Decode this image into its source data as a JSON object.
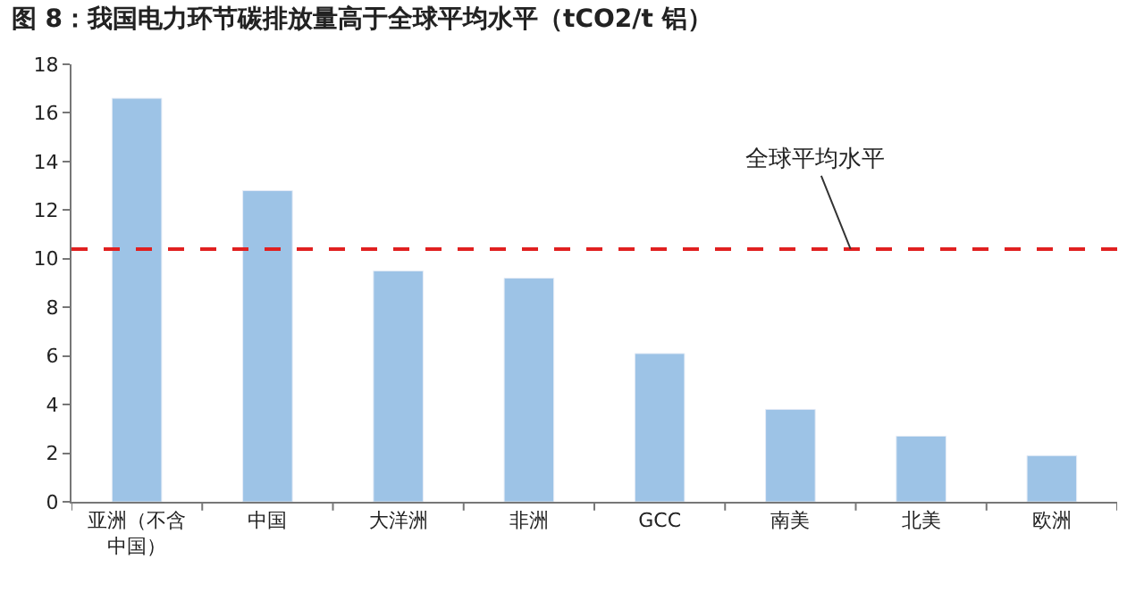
{
  "chart_data": {
    "type": "bar",
    "title": "图 8：我国电力环节碳排放量高于全球平均水平（tCO2/t 铝）",
    "categories": [
      "亚洲（不含中国）",
      "中国",
      "大洋洲",
      "非洲",
      "GCC",
      "南美",
      "北美",
      "欧洲"
    ],
    "values": [
      16.6,
      12.8,
      9.5,
      9.2,
      6.1,
      3.8,
      2.7,
      1.9
    ],
    "color": "#9dc3e6",
    "ylim": [
      0,
      18
    ],
    "yticks": [
      0,
      2,
      4,
      6,
      8,
      10,
      12,
      14,
      16,
      18
    ],
    "ref_lines": [
      {
        "axis": "y",
        "value": 10.4,
        "label": "全球平均水平",
        "color": "#e02020",
        "line_style": "dashed"
      }
    ]
  }
}
